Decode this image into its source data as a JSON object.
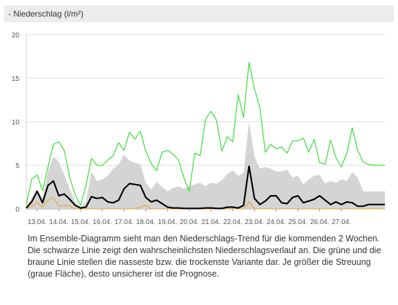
{
  "section": {
    "title": "- Niederschlag (l/m²)"
  },
  "caption": "Im Ensemble-Diagramm sieht man den Niederschlags-Trend für die kommenden 2 Wochen. Die schwarze Linie zeigt den wahrscheinlichsten Niederschlagsverlauf an. Die grüne und die braune Linie stellen die nasseste bzw. die trockenste Variante dar. Je größer die Streuung (graue Fläche), desto unsicherer ist die Prognose.",
  "chart_data": {
    "type": "line",
    "title": "",
    "xlabel": "",
    "ylabel": "",
    "ylim": [
      0,
      20
    ],
    "y_ticks": [
      0,
      5,
      10,
      15,
      20
    ],
    "x_tick_labels": [
      "13.04.",
      "14.04.",
      "15.04.",
      "16.04.",
      "17.04.",
      "18.04.",
      "19.04.",
      "20.04.",
      "21.04.",
      "22.04.",
      "23.04.",
      "24.04.",
      "25.04.",
      "26.04.",
      "27.04."
    ],
    "x_tick_positions": [
      0.5,
      1.5,
      2.5,
      3.5,
      4.5,
      5.5,
      6.5,
      7.5,
      8.5,
      9.5,
      10.5,
      11.5,
      12.5,
      13.5,
      14.5
    ],
    "x_range": [
      0,
      16.5
    ],
    "grid": "horizontal",
    "legend": "none",
    "colors": {
      "wettest": "#33dd33",
      "mostLikely": "#000000",
      "driest": "#f0a020",
      "spread": "#d4d4d4",
      "grid": "#dddddd"
    },
    "series": [
      {
        "key": "wettest",
        "x": [
          0,
          0.25,
          0.5,
          0.75,
          1,
          1.25,
          1.5,
          1.75,
          2,
          2.25,
          2.5,
          2.75,
          3,
          3.25,
          3.5,
          3.75,
          4,
          4.25,
          4.5,
          4.75,
          5,
          5.25,
          5.5,
          5.75,
          6,
          6.25,
          6.5,
          6.75,
          7,
          7.25,
          7.5,
          7.75,
          8,
          8.25,
          8.5,
          8.75,
          9,
          9.25,
          9.5,
          9.75,
          10,
          10.25,
          10.5,
          10.75,
          11,
          11.25,
          11.5,
          11.75,
          12,
          12.25,
          12.5,
          12.75,
          13,
          13.25,
          13.5,
          13.75,
          14,
          14.25,
          14.5,
          14.75,
          15,
          15.25,
          15.5,
          15.75,
          16,
          16.25,
          16.5
        ],
        "y": [
          0.5,
          3.4,
          3.9,
          2.1,
          4.8,
          7.4,
          7.7,
          6.7,
          3.6,
          1.6,
          0.4,
          2.7,
          5.8,
          5.0,
          5.0,
          5.6,
          6.1,
          7.6,
          6.7,
          8.8,
          8.0,
          8.9,
          6.6,
          5.2,
          4.4,
          6.5,
          6.7,
          6.3,
          5.6,
          3.6,
          2.0,
          6.4,
          6.1,
          10.3,
          11.2,
          10.2,
          6.6,
          8.3,
          7.7,
          13.1,
          10.5,
          16.8,
          13.8,
          11.6,
          6.5,
          7.4,
          6.9,
          7.1,
          6.4,
          7.8,
          7.8,
          8.1,
          6.5,
          8.0,
          5.3,
          5.1,
          7.9,
          5.9,
          4.8,
          6.4,
          9.3,
          6.7,
          5.4,
          5.1,
          5.0,
          5.0,
          5.0
        ]
      },
      {
        "key": "mostLikely",
        "x": [
          0,
          0.25,
          0.5,
          0.75,
          1,
          1.25,
          1.5,
          1.75,
          2,
          2.25,
          2.5,
          2.75,
          3,
          3.25,
          3.5,
          3.75,
          4,
          4.25,
          4.5,
          4.75,
          5,
          5.25,
          5.5,
          5.75,
          6,
          6.25,
          6.5,
          6.75,
          7,
          7.25,
          7.5,
          7.75,
          8,
          8.25,
          8.5,
          8.75,
          9,
          9.25,
          9.5,
          9.75,
          10,
          10.25,
          10.5,
          10.75,
          11,
          11.25,
          11.5,
          11.75,
          12,
          12.25,
          12.5,
          12.75,
          13,
          13.25,
          13.5,
          13.75,
          14,
          14.25,
          14.5,
          14.75,
          15,
          15.25,
          15.5,
          15.75,
          16,
          16.25,
          16.5
        ],
        "y": [
          0.1,
          0.8,
          2.0,
          0.7,
          2.7,
          3.2,
          1.5,
          1.7,
          1.1,
          0.4,
          0.1,
          0.2,
          1.4,
          1.2,
          1.3,
          0.8,
          0.7,
          1.0,
          2.3,
          2.9,
          2.8,
          2.7,
          1.3,
          0.8,
          1.0,
          0.6,
          0.2,
          0.1,
          0.1,
          0.05,
          0.05,
          0.05,
          0.05,
          0.1,
          0.1,
          0.05,
          0.05,
          0.2,
          0.2,
          0.1,
          0.4,
          4.9,
          1.2,
          0.5,
          0.9,
          1.5,
          1.5,
          0.7,
          0.6,
          1.3,
          1.5,
          0.7,
          0.9,
          1.1,
          1.5,
          1.0,
          0.5,
          0.8,
          0.5,
          0.8,
          0.7,
          0.3,
          0.3,
          0.5,
          0.5,
          0.5,
          0.5
        ]
      },
      {
        "key": "driest",
        "x": [
          0,
          0.25,
          0.5,
          0.75,
          1,
          1.25,
          1.5,
          1.75,
          2,
          2.25,
          2.5,
          2.75,
          3,
          3.25,
          3.5,
          3.75,
          4,
          4.25,
          4.5,
          4.75,
          5,
          5.25,
          5.5,
          5.75,
          6,
          6.25,
          6.5,
          6.75,
          7,
          7.25,
          7.5,
          7.75,
          8,
          8.25,
          8.5,
          8.75,
          9,
          9.25,
          9.5,
          9.75,
          10,
          10.25,
          10.5,
          10.75,
          11,
          11.25,
          11.5,
          11.75,
          12,
          12.25,
          12.5,
          12.75,
          13,
          13.25,
          13.5,
          13.75,
          14,
          14.25,
          14.5,
          14.75,
          15,
          15.25,
          15.5,
          15.75,
          16,
          16.25,
          16.5
        ],
        "y": [
          0,
          0.3,
          0.7,
          0.2,
          1.0,
          1.3,
          0.3,
          0.4,
          0.3,
          0,
          0,
          0,
          0,
          0,
          0,
          0,
          0,
          0,
          0,
          0,
          0,
          0.2,
          0.4,
          0,
          0,
          0,
          0,
          0,
          0,
          0,
          0,
          0,
          0,
          0,
          0,
          0,
          0,
          0,
          0,
          0,
          0,
          0.8,
          0,
          0,
          0,
          0,
          0,
          0,
          0,
          0,
          0,
          0,
          0,
          0,
          0,
          0,
          0,
          0,
          0,
          0,
          0,
          0,
          0,
          0,
          0,
          0,
          0
        ]
      }
    ],
    "spread": {
      "x": [
        0,
        0.25,
        0.5,
        0.75,
        1,
        1.25,
        1.5,
        1.75,
        2,
        2.25,
        2.5,
        2.75,
        3,
        3.25,
        3.5,
        3.75,
        4,
        4.25,
        4.5,
        4.75,
        5,
        5.25,
        5.5,
        5.75,
        6,
        6.25,
        6.5,
        6.75,
        7,
        7.25,
        7.5,
        7.75,
        8,
        8.25,
        8.5,
        8.75,
        9,
        9.25,
        9.5,
        9.75,
        10,
        10.25,
        10.5,
        10.75,
        11,
        11.25,
        11.5,
        11.75,
        12,
        12.25,
        12.5,
        12.75,
        13,
        13.25,
        13.5,
        13.75,
        14,
        14.25,
        14.5,
        14.75,
        15,
        15.25,
        15.5,
        15.75,
        16,
        16.25,
        16.5
      ],
      "upper": [
        0.3,
        1.3,
        2.3,
        1.3,
        4.3,
        6.0,
        5.4,
        3.9,
        2.3,
        0.8,
        0.2,
        0.8,
        4.3,
        3.2,
        3.4,
        3.8,
        4.6,
        5.1,
        6.2,
        5.5,
        5.3,
        5.1,
        3.0,
        2.2,
        3.1,
        2.5,
        2.0,
        2.4,
        2.6,
        2.3,
        2.6,
        2.8,
        3.0,
        2.6,
        3.0,
        2.9,
        3.3,
        4.0,
        4.4,
        3.8,
        4.1,
        10.0,
        6.0,
        4.6,
        4.8,
        4.6,
        4.3,
        4.3,
        4.5,
        3.6,
        3.8,
        2.8,
        3.4,
        3.8,
        3.9,
        2.9,
        3.2,
        3.0,
        3.4,
        3.2,
        4.2,
        3.6,
        2.0,
        2.0,
        2.0,
        2.0,
        2.0
      ],
      "lower": [
        0,
        0,
        0,
        0,
        0,
        0,
        0,
        0,
        0,
        0,
        0,
        0,
        0,
        0,
        0,
        0,
        0,
        0,
        0,
        0,
        0,
        0,
        0,
        0,
        0,
        0,
        0,
        0,
        0,
        0,
        0,
        0,
        0,
        0,
        0,
        0,
        0,
        0,
        0,
        0,
        0,
        0,
        0,
        0,
        0,
        0,
        0,
        0,
        0,
        0,
        0,
        0,
        0,
        0,
        0,
        0,
        0,
        0,
        0,
        0,
        0,
        0,
        0,
        0,
        0,
        0,
        0
      ]
    }
  }
}
